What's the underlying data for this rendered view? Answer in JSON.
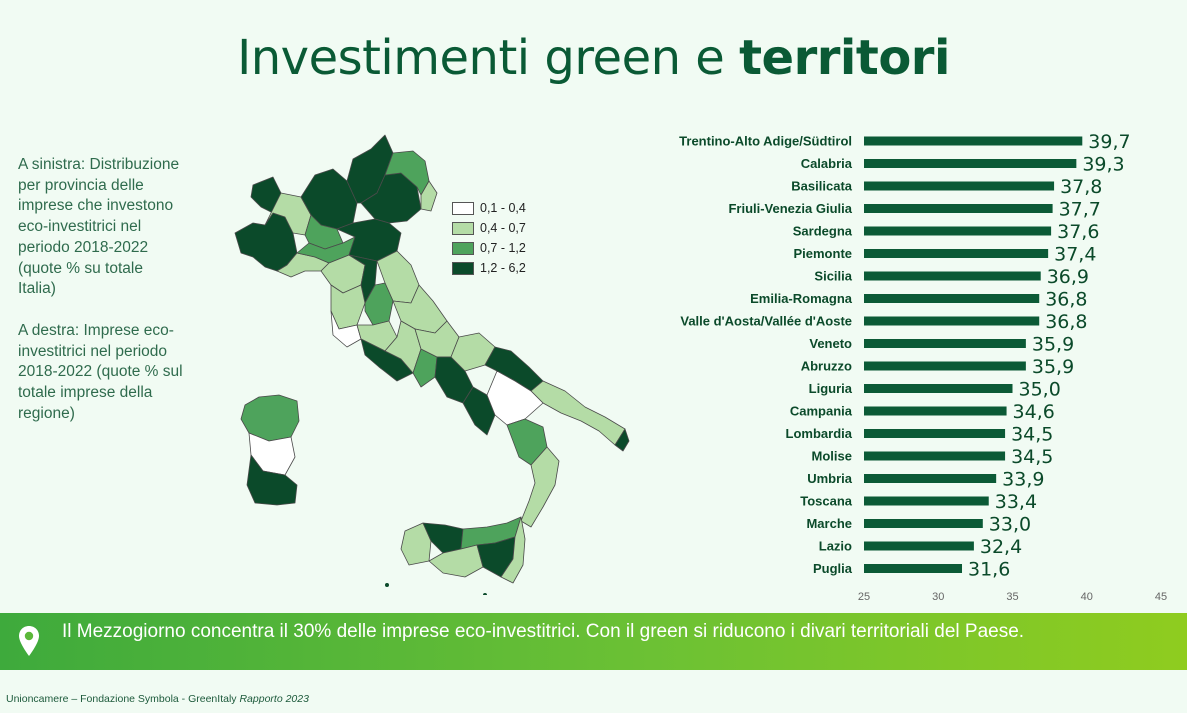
{
  "title": {
    "main": "Investimenti green e",
    "bold": "territori"
  },
  "left_text": {
    "para1": "A sinistra: Distribuzione per provincia delle imprese che investono eco-investitrici nel periodo 2018-2022 (quote % su totale Italia)",
    "para2": "A destra: Imprese eco-investitrici nel periodo 2018-2022 (quote % sul totale imprese della regione)"
  },
  "legend": [
    {
      "label": "0,1 - 0,4",
      "color": "#ffffff"
    },
    {
      "label": "0,4 - 0,7",
      "color": "#b4dca6"
    },
    {
      "label": "0,7 - 1,2",
      "color": "#4ea35c"
    },
    {
      "label": "1,2 - 6,2",
      "color": "#0b4a2a"
    }
  ],
  "chart_data": {
    "type": "bar",
    "orientation": "horizontal",
    "categories": [
      "Trentino-Alto Adige/Südtirol",
      "Calabria",
      "Basilicata",
      "Friuli-Venezia Giulia",
      "Sardegna",
      "Piemonte",
      "Sicilia",
      "Emilia-Romagna",
      "Valle d'Aosta/Vallée d'Aoste",
      "Veneto",
      "Abruzzo",
      "Liguria",
      "Campania",
      "Lombardia",
      "Molise",
      "Umbria",
      "Toscana",
      "Marche",
      "Lazio",
      "Puglia"
    ],
    "values": [
      39.7,
      39.3,
      37.8,
      37.7,
      37.6,
      37.4,
      36.9,
      36.8,
      36.8,
      35.9,
      35.9,
      35.0,
      34.6,
      34.5,
      34.5,
      33.9,
      33.4,
      33.0,
      32.4,
      31.6
    ],
    "value_labels": [
      "39,7",
      "39,3",
      "37,8",
      "37,7",
      "37,6",
      "37,4",
      "36,9",
      "36,8",
      "36,8",
      "35,9",
      "35,9",
      "35,0",
      "34,6",
      "34,5",
      "34,5",
      "33,9",
      "33,4",
      "33,0",
      "32,4",
      "31,6"
    ],
    "xlim": [
      25,
      45
    ],
    "xticks": [
      "25",
      "30",
      "35",
      "40",
      "45"
    ],
    "bar_color": "#0b5a36",
    "title": "",
    "xlabel": "",
    "ylabel": ""
  },
  "banner": {
    "icon": "location-pin-icon",
    "text": "Il Mezzogiorno concentra il 30% delle imprese eco-investitrici. Con il green si riducono i divari territoriali del Paese."
  },
  "footer": {
    "text": "Unioncamere – Fondazione Symbola - GreenItaly",
    "italic": "Rapporto 2023"
  }
}
